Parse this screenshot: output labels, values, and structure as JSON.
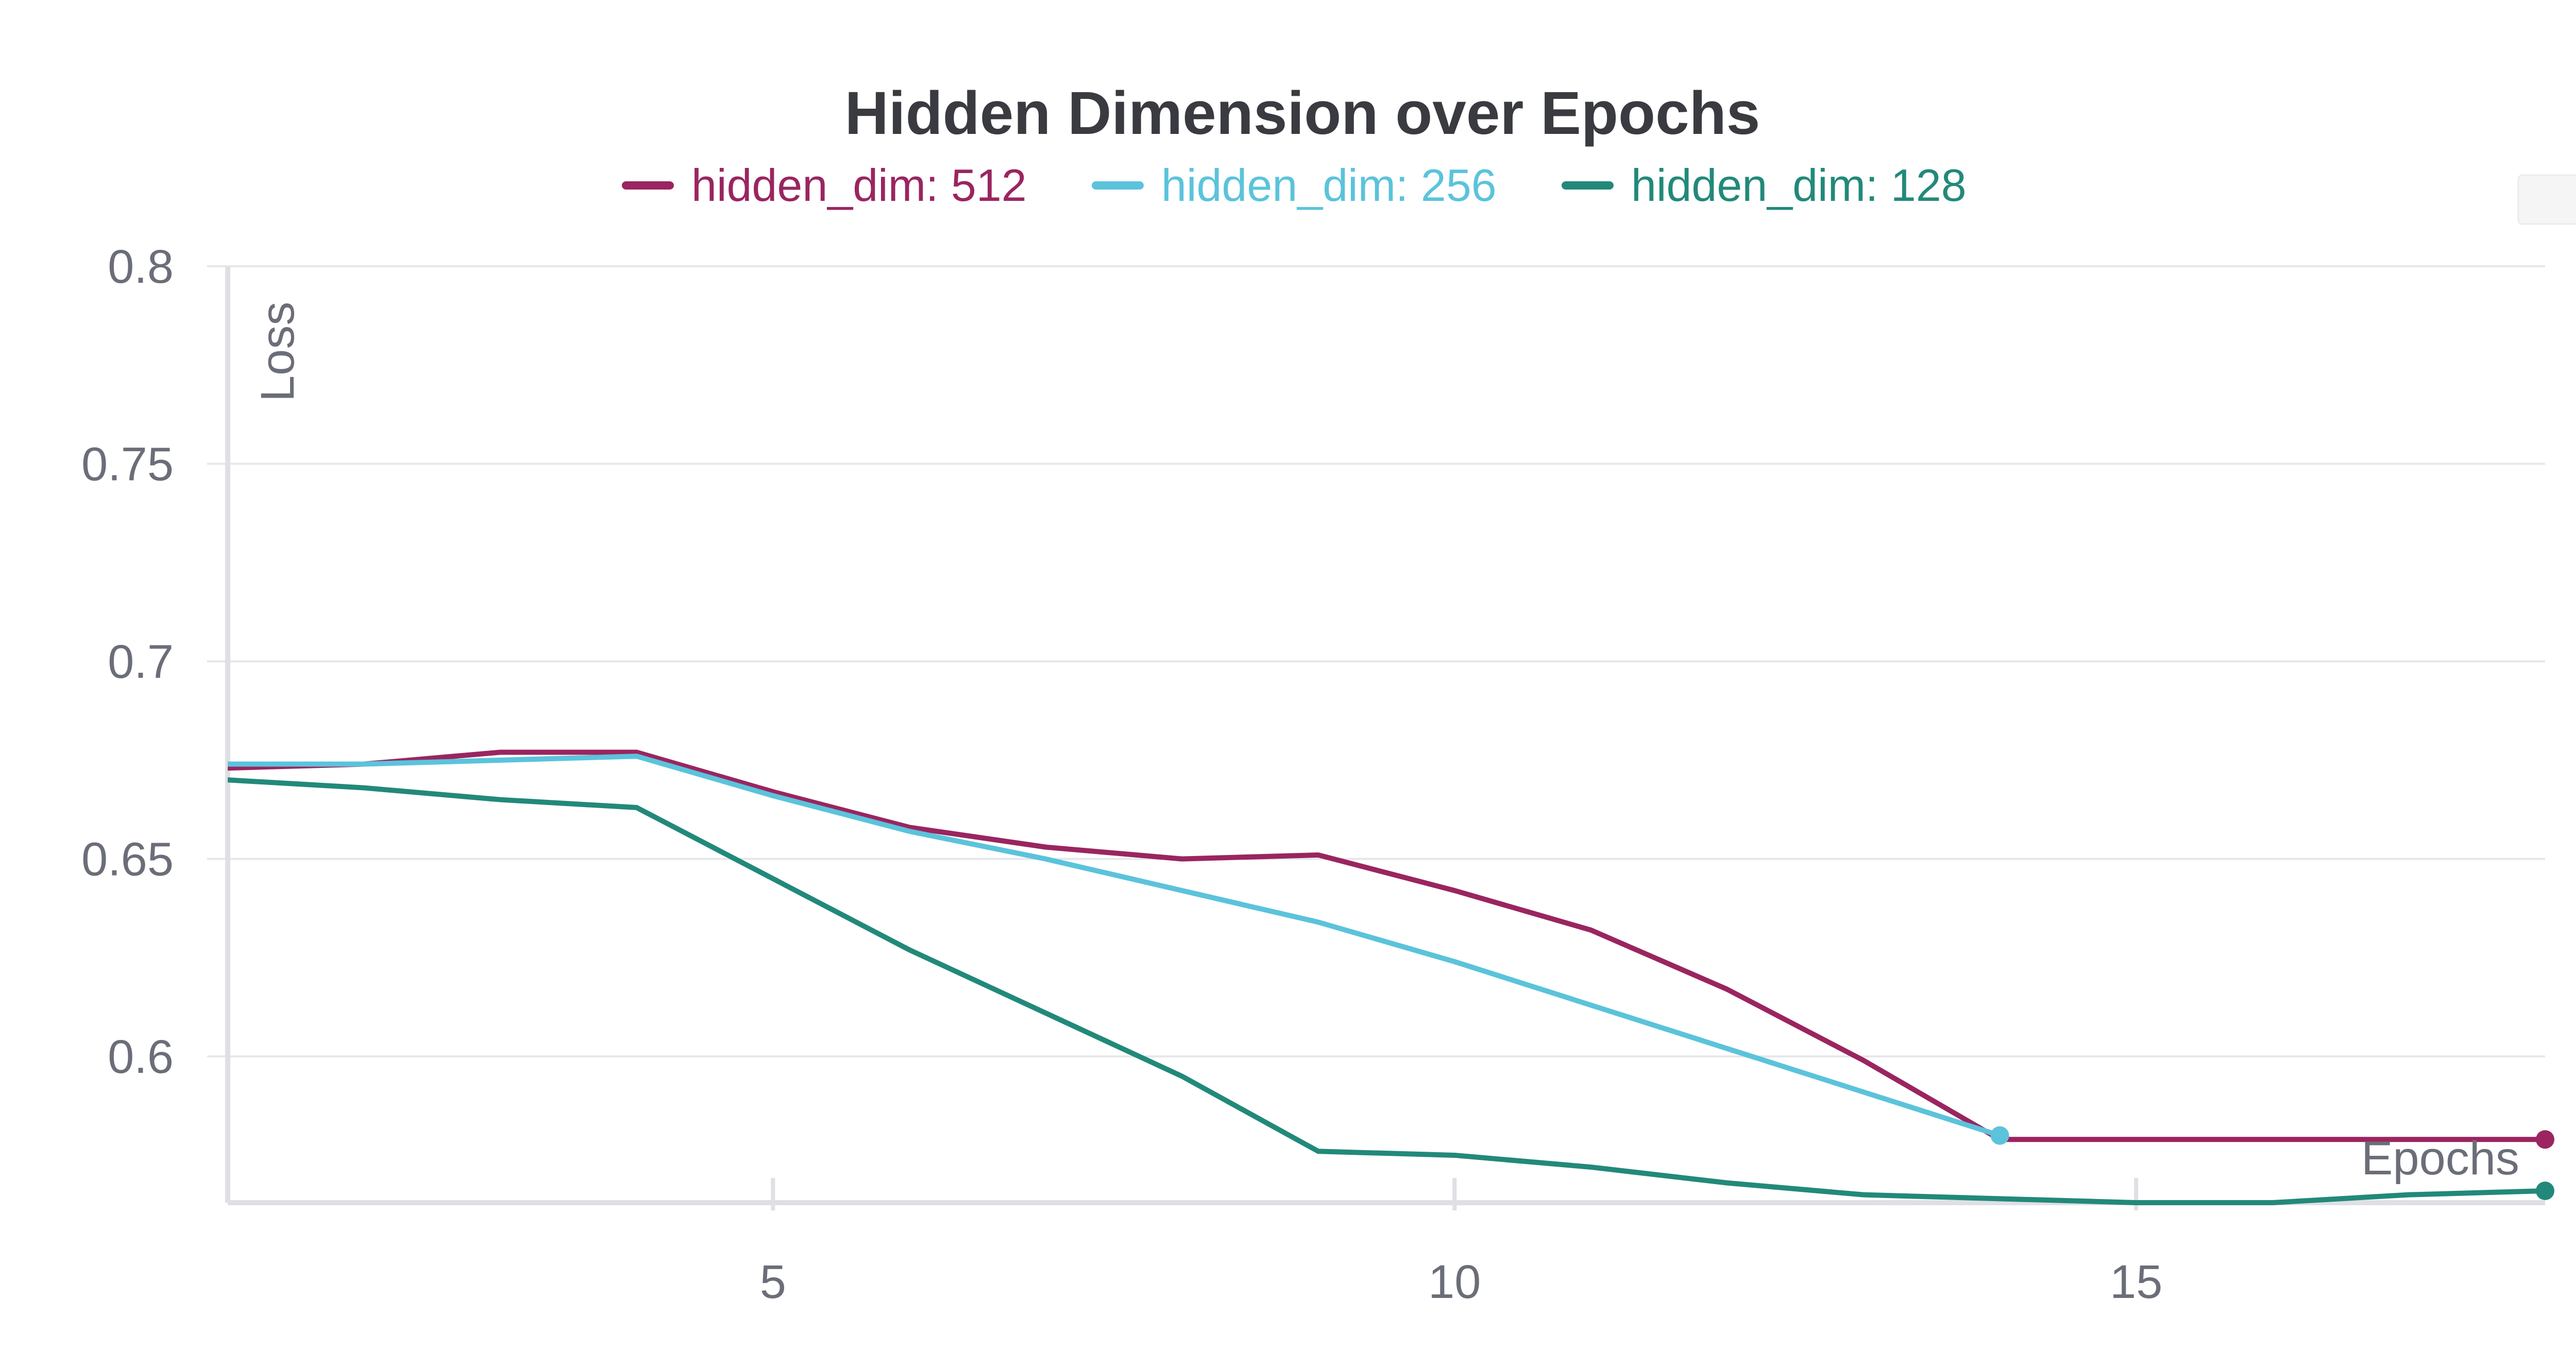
{
  "chart_data": {
    "type": "line",
    "title": "Hidden Dimension over Epochs",
    "xlabel": "Epochs",
    "ylabel": "Loss",
    "xlim": [
      1,
      18
    ],
    "ylim": [
      0.563,
      0.8
    ],
    "xticks": [
      5,
      10,
      15
    ],
    "yticks": [
      0.6,
      0.65,
      0.7,
      0.75,
      0.8
    ],
    "ytick_labels": [
      "0.6",
      "0.65",
      "0.7",
      "0.75",
      "0.8"
    ],
    "grid": true,
    "legend_position": "top-center",
    "series": [
      {
        "name": "hidden_dim: 512",
        "color": "#9a2560",
        "x": [
          1,
          2,
          3,
          4,
          5,
          6,
          7,
          8,
          9,
          10,
          11,
          12,
          13,
          14,
          15,
          16,
          17,
          18
        ],
        "y": [
          0.673,
          0.674,
          0.677,
          0.677,
          0.667,
          0.658,
          0.653,
          0.65,
          0.651,
          0.642,
          0.632,
          0.617,
          0.599,
          0.579,
          0.579,
          0.579,
          0.579,
          0.579
        ]
      },
      {
        "name": "hidden_dim: 256",
        "color": "#5bc3db",
        "x": [
          1,
          2,
          3,
          4,
          5,
          6,
          7,
          8,
          9,
          10,
          11,
          12,
          13,
          14
        ],
        "y": [
          0.674,
          0.674,
          0.675,
          0.676,
          0.666,
          0.657,
          0.65,
          0.642,
          0.634,
          0.624,
          0.613,
          0.602,
          0.591,
          0.58
        ]
      },
      {
        "name": "hidden_dim: 128",
        "color": "#22897a",
        "x": [
          1,
          2,
          3,
          4,
          5,
          6,
          7,
          8,
          9,
          10,
          11,
          12,
          13,
          14,
          15,
          16,
          17,
          18
        ],
        "y": [
          0.67,
          0.668,
          0.665,
          0.663,
          0.645,
          0.627,
          0.611,
          0.595,
          0.576,
          0.575,
          0.572,
          0.568,
          0.565,
          0.564,
          0.563,
          0.563,
          0.565,
          0.566
        ]
      }
    ]
  }
}
